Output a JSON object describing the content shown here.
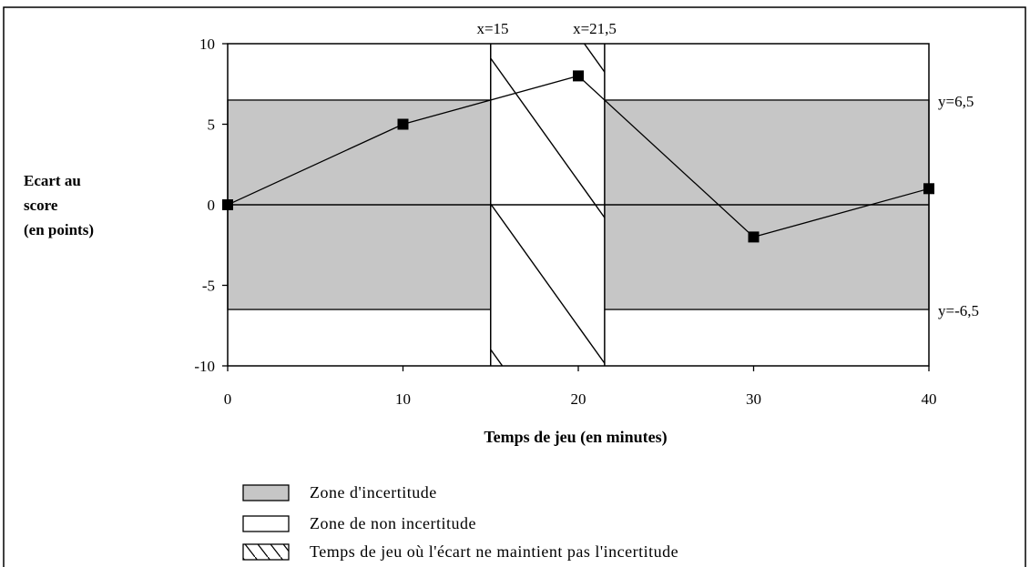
{
  "chart_data": {
    "type": "line",
    "xlabel": "Temps de jeu (en minutes)",
    "ylabel": [
      "Ecart au",
      "score",
      "(en points)"
    ],
    "xlim": [
      0,
      40
    ],
    "ylim": [
      -10,
      10
    ],
    "x_ticks": [
      0,
      10,
      20,
      30,
      40
    ],
    "x_tick_labels": [
      "0",
      "10",
      "20",
      "30",
      "40"
    ],
    "y_ticks": [
      10,
      5,
      0,
      -5,
      -10
    ],
    "y_tick_labels": [
      "10",
      "5",
      "0",
      "-5",
      "-10"
    ],
    "series": [
      {
        "x": [
          0,
          10,
          20,
          30,
          40
        ],
        "y": [
          0,
          5,
          8,
          -2,
          1
        ]
      }
    ],
    "uncertainty_band": {
      "ymin": -6.5,
      "ymax": 6.5,
      "color": "#c6c6c6"
    },
    "hatched_interval": {
      "xmin": 15,
      "xmax": 21.5
    },
    "annotations": {
      "x_left": "x=15",
      "x_right": "x=21,5",
      "y_top": "y=6,5",
      "y_bottom": "y=-6,5"
    },
    "legend": {
      "placement": "bottom-left",
      "items": [
        {
          "label": "Zone d'incertitude",
          "style": "grey"
        },
        {
          "label": "Zone de non incertitude",
          "style": "white"
        },
        {
          "label": "Temps de jeu où l'écart ne maintient pas l'incertitude",
          "style": "hatched"
        }
      ]
    }
  }
}
